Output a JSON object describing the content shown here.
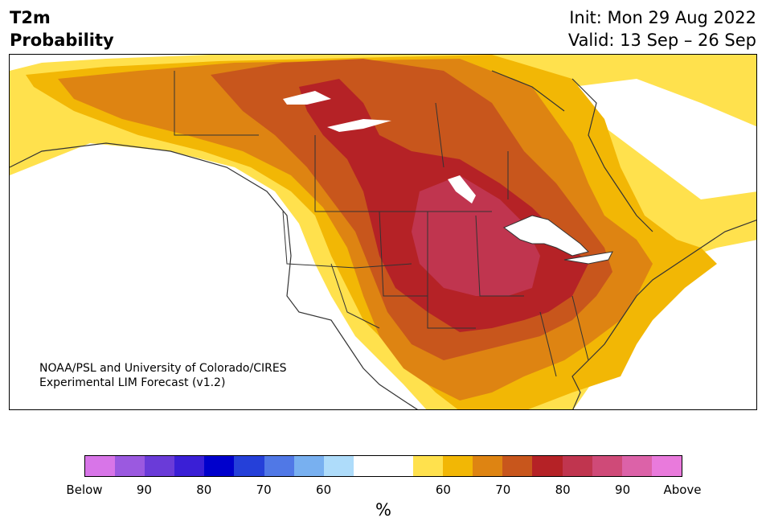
{
  "header": {
    "variable": "T2m",
    "product": "Probability",
    "init": "Init: Mon 29 Aug 2022",
    "valid": "Valid: 13 Sep – 26 Sep"
  },
  "credit": {
    "line1": "NOAA/PSL and University of Colorado/CIRES",
    "line2": "Experimental LIM Forecast (v1.2)"
  },
  "colorbar": {
    "colors": [
      "#d875e8",
      "#9b59e0",
      "#6a3bd8",
      "#3a1fd6",
      "#0000cc",
      "#2540d9",
      "#5078e6",
      "#78b0f0",
      "#aedcfa",
      "#ffffff",
      "#ffffff",
      "#ffe14d",
      "#f2b705",
      "#de8412",
      "#c8561c",
      "#b52226",
      "#c0354f",
      "#cf4a78",
      "#dc62a8",
      "#e97adc"
    ],
    "ticks": [
      "Below",
      "90",
      "80",
      "70",
      "60",
      "60",
      "70",
      "80",
      "90",
      "Above"
    ],
    "unit": "%"
  },
  "map": {
    "regions": [
      "North America"
    ],
    "palette": {
      "land": "#ffffff",
      "water": "#ffffff",
      "border": "#333333"
    }
  }
}
